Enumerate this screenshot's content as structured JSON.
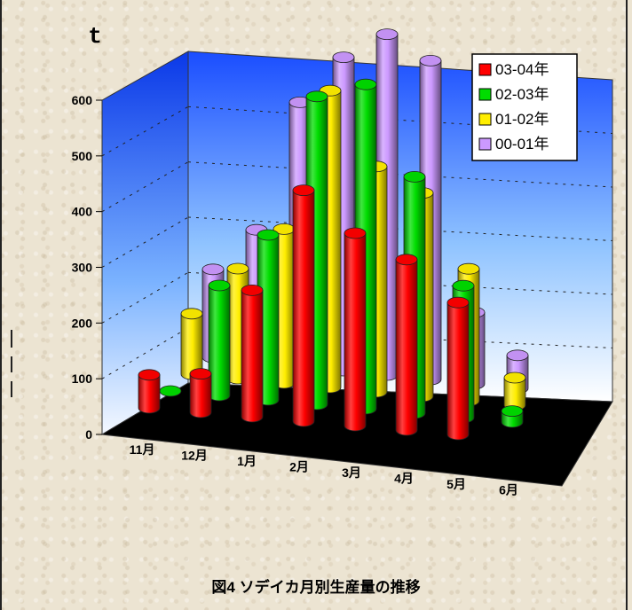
{
  "chart_data": {
    "type": "bar",
    "title": "図4  ソデイカ月別生産量の推移",
    "ylabel": "t",
    "ylim": [
      0,
      600
    ],
    "yticks": [
      "0",
      "100",
      "200",
      "300",
      "400",
      "500",
      "600"
    ],
    "categories": [
      "11月",
      "12月",
      "1月",
      "2月",
      "3月",
      "4月",
      "5月",
      "6月"
    ],
    "legend_position": "top-right",
    "grid": true,
    "series": [
      {
        "name": "03-04年",
        "color": "#ff0000",
        "values": [
          60,
          70,
          230,
          420,
          350,
          310,
          240,
          null
        ]
      },
      {
        "name": "02-03年",
        "color": "#00dd00",
        "values": [
          0,
          200,
          300,
          560,
          590,
          430,
          240,
          20
        ]
      },
      {
        "name": "01-02年",
        "color": "#ffee00",
        "values": [
          110,
          200,
          280,
          540,
          410,
          370,
          240,
          50
        ]
      },
      {
        "name": "00-01年",
        "color": "#cc99ff",
        "values": [
          160,
          240,
          480,
          570,
          620,
          580,
          130,
          60
        ]
      }
    ]
  }
}
